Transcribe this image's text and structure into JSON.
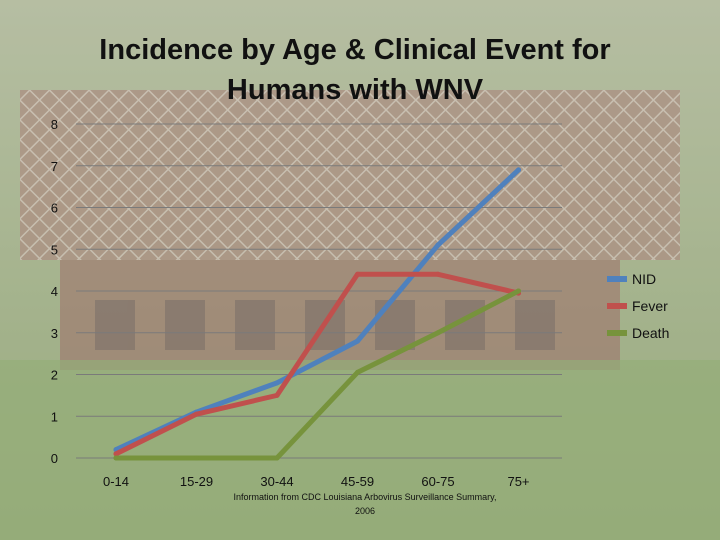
{
  "chart_data": {
    "type": "line",
    "title": "Incidence by Age & Clinical Event for Humans with WNV",
    "xlabel": "",
    "ylabel": "",
    "categories": [
      "0-14",
      "15-29",
      "30-44",
      "45-59",
      "60-75",
      "75+"
    ],
    "ylim": [
      0,
      8
    ],
    "yticks": [
      0,
      1,
      2,
      3,
      4,
      5,
      6,
      7,
      8
    ],
    "grid": true,
    "legend_position": "right",
    "series": [
      {
        "name": "NID",
        "color": "#4f81bd",
        "values": [
          0.2,
          1.1,
          1.8,
          2.8,
          5.1,
          6.9
        ]
      },
      {
        "name": "Fever",
        "color": "#c0504d",
        "values": [
          0.1,
          1.05,
          1.5,
          4.4,
          4.4,
          3.95
        ]
      },
      {
        "name": "Death",
        "color": "#77933c",
        "values": [
          0,
          0,
          0,
          2.05,
          3.0,
          4.0
        ]
      }
    ],
    "annotation": "Information from CDC Louisiana Arbovirus Surveillance Summary, 2006"
  }
}
